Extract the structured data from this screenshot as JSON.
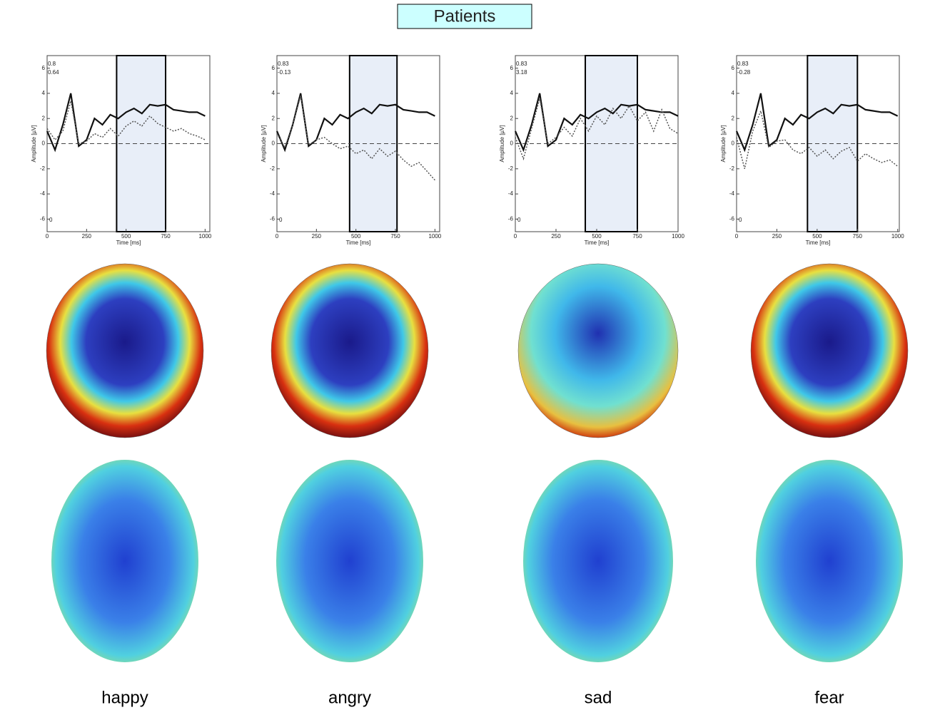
{
  "title": "Patients",
  "chart_data": [
    {
      "type": "line",
      "caption": "happy",
      "x_label": "Time [ms]",
      "y_label": "Amplitude [µV]",
      "annotations": [
        "0.8",
        "0.64",
        "0"
      ],
      "x": [
        0,
        50,
        100,
        150,
        200,
        250,
        300,
        350,
        400,
        450,
        500,
        550,
        600,
        650,
        700,
        750,
        800,
        850,
        900,
        950,
        1000
      ],
      "xlim": [
        0,
        1030
      ],
      "xticks": [
        0,
        250,
        500,
        750,
        1000
      ],
      "ylim": [
        -7,
        7
      ],
      "yticks": [
        6,
        4,
        2,
        0,
        -2,
        -4,
        -6
      ],
      "highlight": [
        440,
        750
      ],
      "series": [
        {
          "color": "#111111",
          "dash": "solid",
          "values": [
            1.0,
            -0.5,
            1.5,
            4.0,
            -0.2,
            0.3,
            2.0,
            1.5,
            2.3,
            2.0,
            2.5,
            2.8,
            2.4,
            3.1,
            3.0,
            3.1,
            2.7,
            2.6,
            2.5,
            2.5,
            2.2
          ]
        },
        {
          "color": "#555555",
          "dash": "dotted",
          "values": [
            1.2,
            0.3,
            1.0,
            3.4,
            0.0,
            0.2,
            0.8,
            0.5,
            1.2,
            0.6,
            1.4,
            1.8,
            1.4,
            2.2,
            1.6,
            1.3,
            1.0,
            1.2,
            0.8,
            0.6,
            0.3
          ]
        }
      ]
    },
    {
      "type": "line",
      "caption": "angry",
      "x_label": "Time [ms]",
      "y_label": "Amplitude [µV]",
      "annotations": [
        "0.83",
        "-0.13",
        "0"
      ],
      "x": [
        0,
        50,
        100,
        150,
        200,
        250,
        300,
        350,
        400,
        450,
        500,
        550,
        600,
        650,
        700,
        750,
        800,
        850,
        900,
        950,
        1000
      ],
      "xlim": [
        0,
        1030
      ],
      "xticks": [
        0,
        250,
        500,
        750,
        1000
      ],
      "ylim": [
        -7,
        7
      ],
      "yticks": [
        6,
        4,
        2,
        0,
        -2,
        -4,
        -6
      ],
      "highlight": [
        460,
        760
      ],
      "series": [
        {
          "color": "#111111",
          "dash": "solid",
          "values": [
            1.0,
            -0.5,
            1.5,
            4.0,
            -0.2,
            0.3,
            2.0,
            1.5,
            2.3,
            2.0,
            2.5,
            2.8,
            2.4,
            3.1,
            3.0,
            3.1,
            2.7,
            2.6,
            2.5,
            2.5,
            2.2
          ]
        },
        {
          "color": "#555555",
          "dash": "dotted",
          "values": [
            0.8,
            -0.3,
            1.5,
            3.8,
            -0.1,
            0.3,
            0.5,
            0.0,
            -0.4,
            -0.2,
            -0.8,
            -0.5,
            -1.2,
            -0.4,
            -1.0,
            -0.6,
            -1.3,
            -1.8,
            -1.5,
            -2.2,
            -2.9
          ]
        }
      ]
    },
    {
      "type": "line",
      "caption": "sad",
      "x_label": "Time [ms]",
      "y_label": "Amplitude [µV]",
      "annotations": [
        "0.83",
        "3.18",
        "0"
      ],
      "x": [
        0,
        50,
        100,
        150,
        200,
        250,
        300,
        350,
        400,
        450,
        500,
        550,
        600,
        650,
        700,
        750,
        800,
        850,
        900,
        950,
        1000
      ],
      "xlim": [
        0,
        1000
      ],
      "xticks": [
        0,
        250,
        500,
        750,
        1000
      ],
      "ylim": [
        -7,
        7
      ],
      "yticks": [
        6,
        4,
        2,
        0,
        -2,
        -4,
        -6
      ],
      "highlight": [
        430,
        750
      ],
      "series": [
        {
          "color": "#111111",
          "dash": "solid",
          "values": [
            1.0,
            -0.5,
            1.5,
            4.0,
            -0.2,
            0.3,
            2.0,
            1.5,
            2.3,
            2.0,
            2.5,
            2.8,
            2.4,
            3.1,
            3.0,
            3.1,
            2.7,
            2.6,
            2.5,
            2.5,
            2.2
          ]
        },
        {
          "color": "#555555",
          "dash": "dotted",
          "values": [
            0.5,
            -1.2,
            1.2,
            3.6,
            0.0,
            0.5,
            1.3,
            0.6,
            2.0,
            1.0,
            2.2,
            1.5,
            2.8,
            2.0,
            3.0,
            1.8,
            2.5,
            1.0,
            2.7,
            1.2,
            0.8
          ]
        }
      ]
    },
    {
      "type": "line",
      "caption": "fear",
      "x_label": "Time [ms]",
      "y_label": "Amplitude [µV]",
      "annotations": [
        "0.83",
        "-0.28",
        "0"
      ],
      "x": [
        0,
        50,
        100,
        150,
        200,
        250,
        300,
        350,
        400,
        450,
        500,
        550,
        600,
        650,
        700,
        750,
        800,
        850,
        900,
        950,
        1000
      ],
      "xlim": [
        0,
        1010
      ],
      "xticks": [
        0,
        250,
        500,
        750,
        1000
      ],
      "ylim": [
        -7,
        7
      ],
      "yticks": [
        6,
        4,
        2,
        0,
        -2,
        -4,
        -6
      ],
      "highlight": [
        440,
        750
      ],
      "series": [
        {
          "color": "#111111",
          "dash": "solid",
          "values": [
            1.0,
            -0.5,
            1.5,
            4.0,
            -0.2,
            0.3,
            2.0,
            1.5,
            2.3,
            2.0,
            2.5,
            2.8,
            2.4,
            3.1,
            3.0,
            3.1,
            2.7,
            2.6,
            2.5,
            2.5,
            2.2
          ]
        },
        {
          "color": "#555555",
          "dash": "dotted",
          "values": [
            0.5,
            -2.0,
            1.0,
            2.6,
            -0.3,
            0.2,
            0.3,
            -0.5,
            -0.8,
            -0.3,
            -1.0,
            -0.5,
            -1.2,
            -0.6,
            -0.3,
            -1.4,
            -0.8,
            -1.2,
            -1.5,
            -1.3,
            -1.8
          ]
        }
      ]
    }
  ]
}
